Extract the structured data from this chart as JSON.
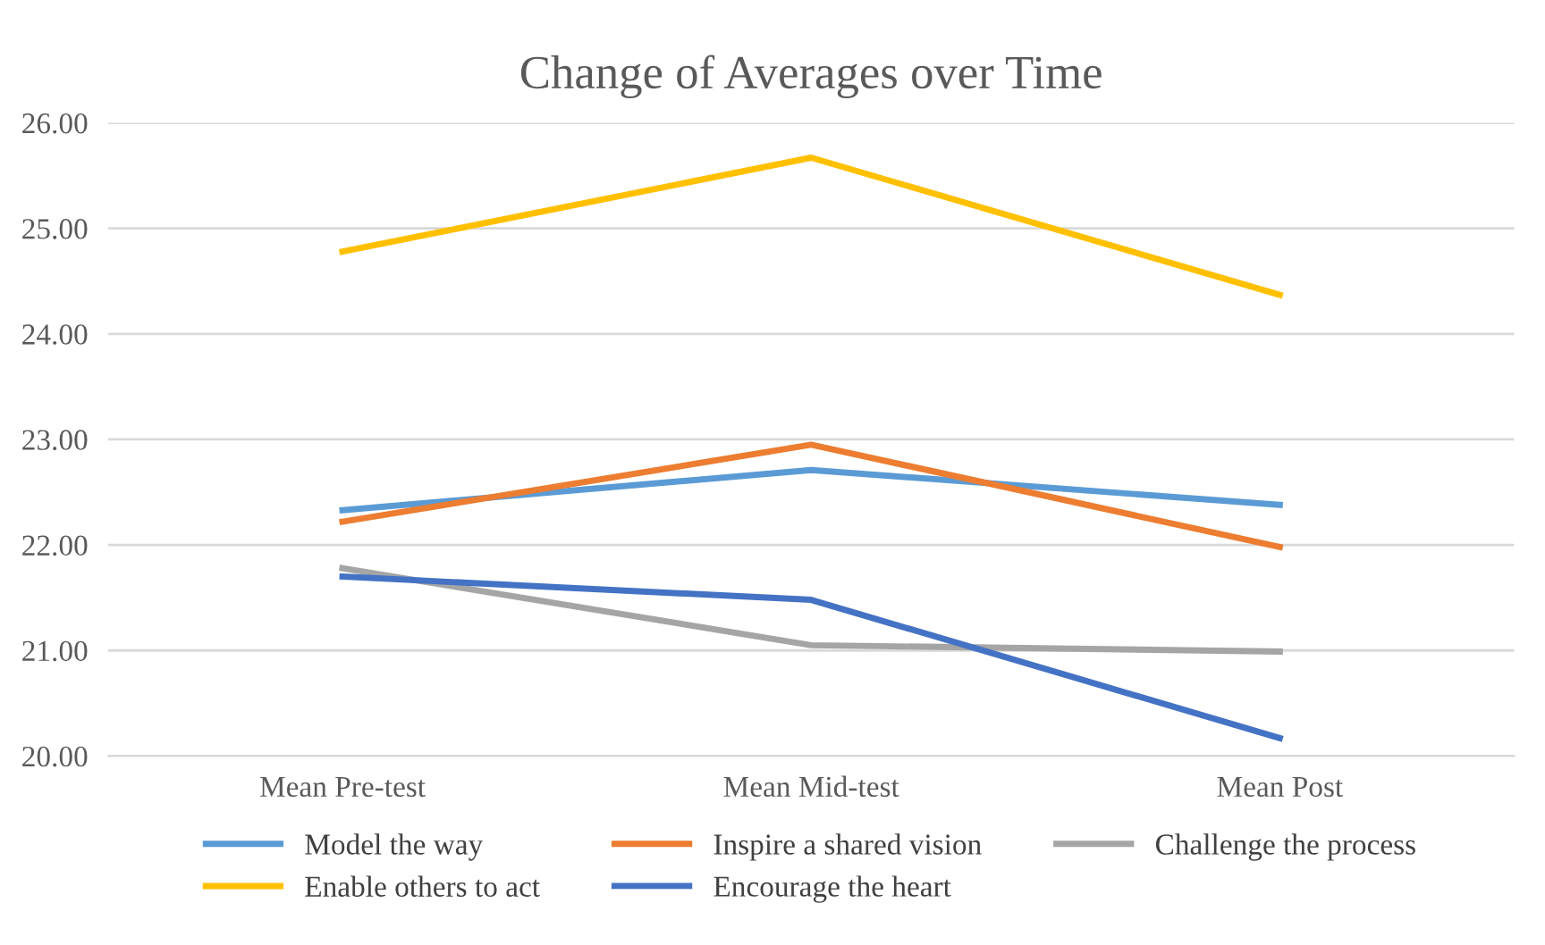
{
  "chart_data": {
    "type": "line",
    "title": "Change of Averages over Time",
    "categories": [
      "Mean Pre-test",
      "Mean Mid-test",
      "Mean Post"
    ],
    "series": [
      {
        "name": "Model the way",
        "color": "#5b9bd5",
        "values": [
          22.33,
          22.71,
          22.38
        ]
      },
      {
        "name": "Inspire a shared vision",
        "color": "#ed7d31",
        "values": [
          22.22,
          22.95,
          21.98
        ]
      },
      {
        "name": "Challenge the process",
        "color": "#a5a5a5",
        "values": [
          21.78,
          21.05,
          20.99
        ]
      },
      {
        "name": "Enable others to act",
        "color": "#ffc000",
        "values": [
          24.78,
          25.67,
          24.37
        ]
      },
      {
        "name": "Encourage the heart",
        "color": "#4472c4",
        "values": [
          21.7,
          21.48,
          20.17
        ]
      }
    ],
    "ylim": [
      20,
      26
    ],
    "yticks": [
      {
        "value": 20,
        "label": "20.00"
      },
      {
        "value": 21,
        "label": "21.00"
      },
      {
        "value": 22,
        "label": "22.00"
      },
      {
        "value": 23,
        "label": "23.00"
      },
      {
        "value": 24,
        "label": "24.00"
      },
      {
        "value": 25,
        "label": "25.00"
      },
      {
        "value": 26,
        "label": "26.00"
      }
    ],
    "grid": "y",
    "legend": "bottom",
    "marker": "none",
    "line_style": "solid"
  }
}
